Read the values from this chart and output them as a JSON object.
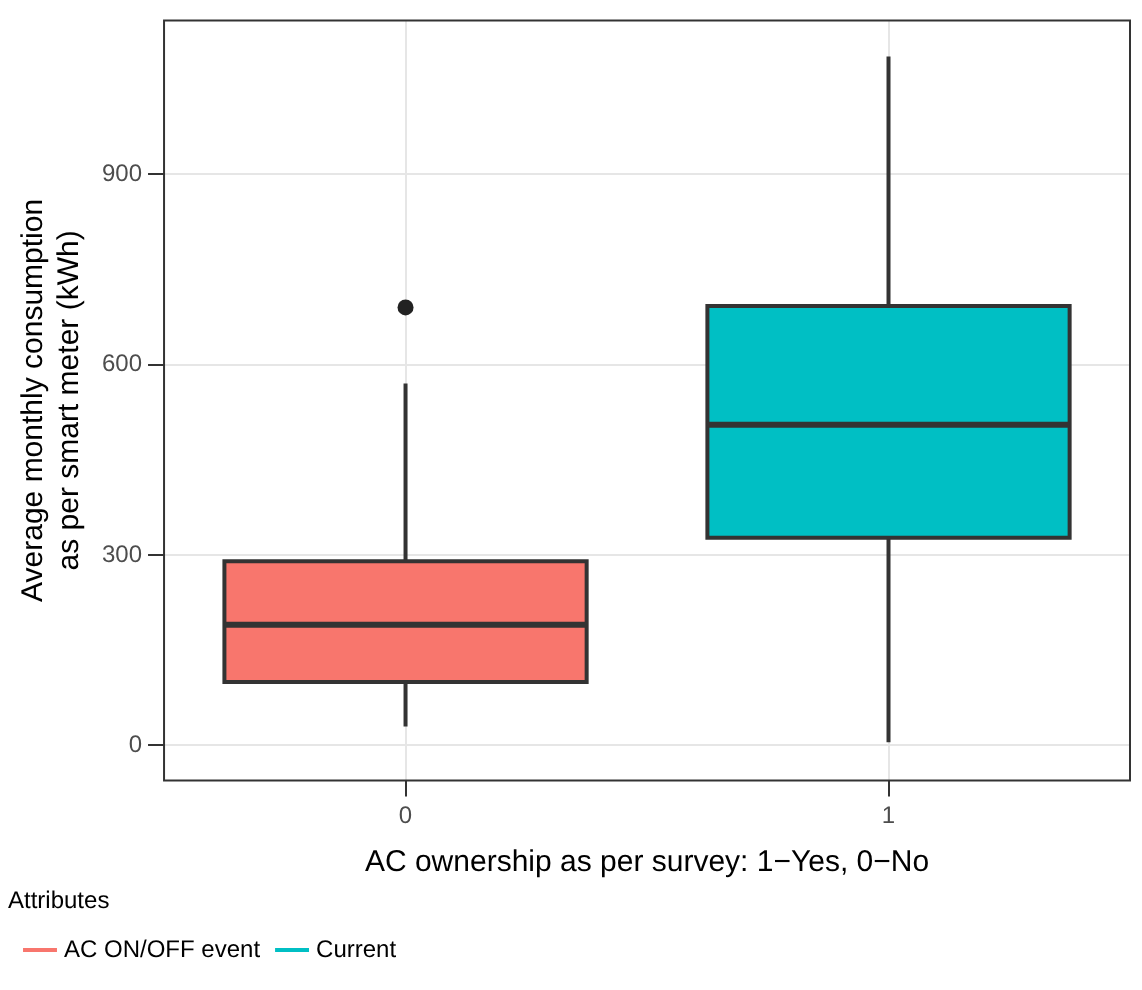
{
  "chart_data": {
    "type": "box",
    "xlabel": "AC ownership as per survey: 1−Yes, 0−No",
    "ylabel": "Average monthly consumption\nas per smart meter (kWh)",
    "legend_title": "Attributes",
    "legend": "bottom left",
    "grid": true,
    "categories": [
      "0",
      "1"
    ],
    "series": [
      {
        "name": "AC ON/OFF event",
        "color": "#f8766d",
        "boxes": [
          {
            "low": 30,
            "q1": 100,
            "median": 190,
            "q3": 290,
            "high": 570,
            "outliers": [
              690
            ]
          },
          null
        ]
      },
      {
        "name": "Current",
        "color": "#00bfc4",
        "boxes": [
          null,
          {
            "low": 5,
            "q1": 327,
            "median": 505,
            "q3": 692,
            "high": 1085
          }
        ]
      }
    ],
    "ylim": [
      -55,
      1142
    ],
    "yticks": [
      0,
      300,
      600,
      900
    ]
  }
}
